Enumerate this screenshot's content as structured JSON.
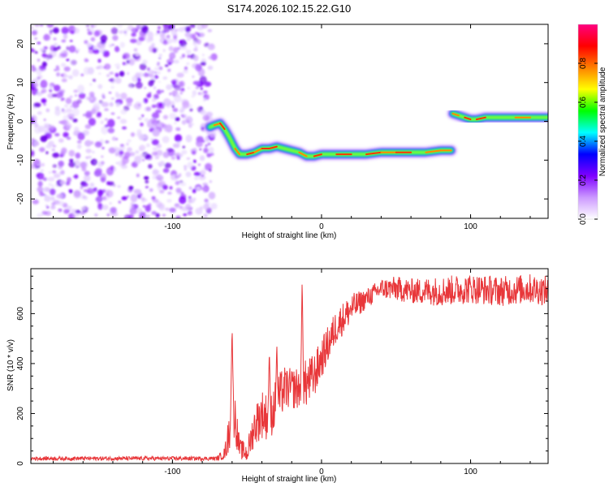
{
  "chart_data": [
    {
      "type": "heatmap",
      "title": "S174.2026.102.15.22.G10",
      "xlabel": "Height of straight line (km)",
      "ylabel": "Frequency (Hz)",
      "xlim": [
        -195,
        152
      ],
      "ylim": [
        -25,
        25
      ],
      "xticks": [
        -100,
        0,
        100
      ],
      "xtick_labels": [
        "-100",
        "0",
        "100"
      ],
      "yticks": [
        -20,
        -10,
        0,
        10,
        20
      ],
      "ytick_labels": [
        "-20",
        "-10",
        "0",
        "10",
        "20"
      ],
      "noise_region_x": [
        -195,
        -72
      ],
      "noise_color": "#8a2be2",
      "ridge": {
        "x": [
          -75,
          -72,
          -68,
          -65,
          -62,
          -58,
          -55,
          -50,
          -45,
          -40,
          -35,
          -30,
          -25,
          -20,
          -15,
          -10,
          -5,
          0,
          10,
          20,
          30,
          40,
          50,
          60,
          70,
          80,
          87
        ],
        "y": [
          -1.5,
          -1,
          -0.5,
          -2,
          -4,
          -7,
          -8.5,
          -8.5,
          -8,
          -7,
          -7,
          -6.5,
          -7,
          -7.5,
          -8,
          -9,
          -9,
          -8.5,
          -8.5,
          -8.5,
          -8.5,
          -8,
          -8,
          -8,
          -8,
          -7.5,
          -7.5
        ]
      },
      "ridge2": {
        "x": [
          88,
          92,
          96,
          100,
          104,
          110,
          120,
          130,
          140,
          152
        ],
        "y": [
          2,
          1.5,
          1,
          0.5,
          0.5,
          1,
          1,
          1,
          1,
          1
        ]
      },
      "colorbar": {
        "label": "Normalized spectral amplitude",
        "range": [
          0,
          1
        ],
        "ticks": [
          0.0,
          0.2,
          0.4,
          0.6,
          0.8
        ],
        "tick_labels": [
          "0.0",
          "0.2",
          "0.4",
          "0.6",
          "0.8"
        ],
        "stops": [
          "#ffffff",
          "#cc99ff",
          "#7f00ff",
          "#0000ff",
          "#00ffff",
          "#00ff00",
          "#ffff00",
          "#ff8000",
          "#ff0000",
          "#ff0080"
        ]
      }
    },
    {
      "type": "line",
      "xlabel": "Height of straight line (km)",
      "ylabel": "SNR (10 * v/v)",
      "xlim": [
        -195,
        152
      ],
      "ylim": [
        0,
        780
      ],
      "xticks": [
        -100,
        0,
        100
      ],
      "xtick_labels": [
        "-100",
        "0",
        "100"
      ],
      "yticks": [
        0,
        200,
        400,
        600
      ],
      "ytick_labels": [
        "0",
        "200",
        "400",
        "600"
      ],
      "color": "#e8373a",
      "series": [
        {
          "name": "SNR",
          "envelope_x": [
            -195,
            -70,
            -65,
            -62,
            -60,
            -58,
            -55,
            -50,
            -45,
            -40,
            -35,
            -30,
            -25,
            -20,
            -15,
            -10,
            -5,
            0,
            10,
            20,
            30,
            40,
            50,
            60,
            80,
            100,
            120,
            140,
            152
          ],
          "envelope_y": [
            20,
            20,
            40,
            120,
            250,
            180,
            60,
            40,
            150,
            200,
            180,
            250,
            300,
            300,
            300,
            320,
            350,
            420,
            550,
            620,
            660,
            700,
            700,
            690,
            690,
            700,
            690,
            700,
            690
          ],
          "noise_amplitude": [
            8,
            8,
            25,
            80,
            120,
            100,
            40,
            40,
            80,
            100,
            90,
            100,
            90,
            80,
            90,
            100,
            90,
            80,
            70,
            60,
            40,
            40,
            50,
            50,
            60,
            60,
            60,
            60,
            60
          ],
          "spikes_x": [
            -60,
            -35,
            -30,
            -13
          ],
          "spikes_y": [
            550,
            460,
            490,
            750
          ]
        }
      ]
    }
  ]
}
